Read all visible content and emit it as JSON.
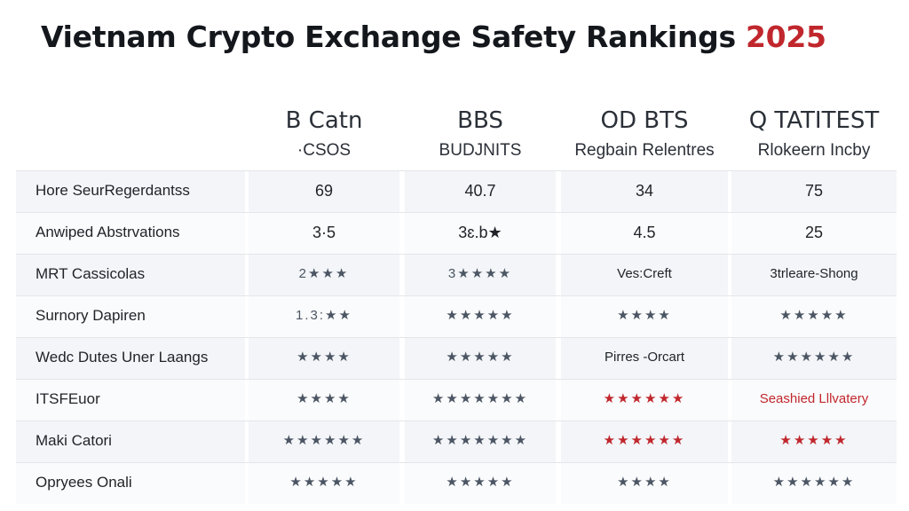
{
  "title": {
    "main": "Vietnam Crypto Exchange Safety Rankings",
    "year": "2025"
  },
  "columns": [
    {
      "name": "B Catn",
      "sub": "·CSOS"
    },
    {
      "name": "BBS",
      "sub": "BUDJNITS"
    },
    {
      "name": "OD BTS",
      "sub": "Regbain Relentres"
    },
    {
      "name": "Q TATITEST",
      "sub": "Rlokeern Incby"
    }
  ],
  "rows": [
    {
      "label": "Hore SeurRegerdantss",
      "values": [
        "69",
        "40.7",
        "34",
        "75"
      ]
    },
    {
      "label": "Anwiped Abstrvations",
      "values": [
        "3·5",
        "3ɛ.b★",
        "4.5",
        "25"
      ]
    },
    {
      "label": "MRT Cassicolas",
      "values": [
        "2★★★",
        "3★★★★",
        "Ves:Creft",
        "3trleare-Shong"
      ]
    },
    {
      "label": "Surnory Dapiren",
      "values": [
        "1.3:★★",
        "★★★★★",
        "★★★★",
        "★★★★★"
      ]
    },
    {
      "label": "Wedc Dutes Uner Laangs",
      "values": [
        "★★★★",
        "★★★★★",
        "Pirres -Orcart",
        "★★★★★★"
      ]
    },
    {
      "label": "ITSFEuor",
      "values": [
        "★★★★",
        "★★★★★★★",
        "★★★★★★",
        "Seashied Lllvatery"
      ]
    },
    {
      "label": "Maki Catori",
      "values": [
        "★★★★★★",
        "★★★★★★★",
        "★★★★★★",
        "★★★★★"
      ]
    },
    {
      "label": "Opryees Onali",
      "values": [
        "★★★★★",
        "★★★★★",
        "★★★★",
        "★★★★★★"
      ]
    }
  ]
}
